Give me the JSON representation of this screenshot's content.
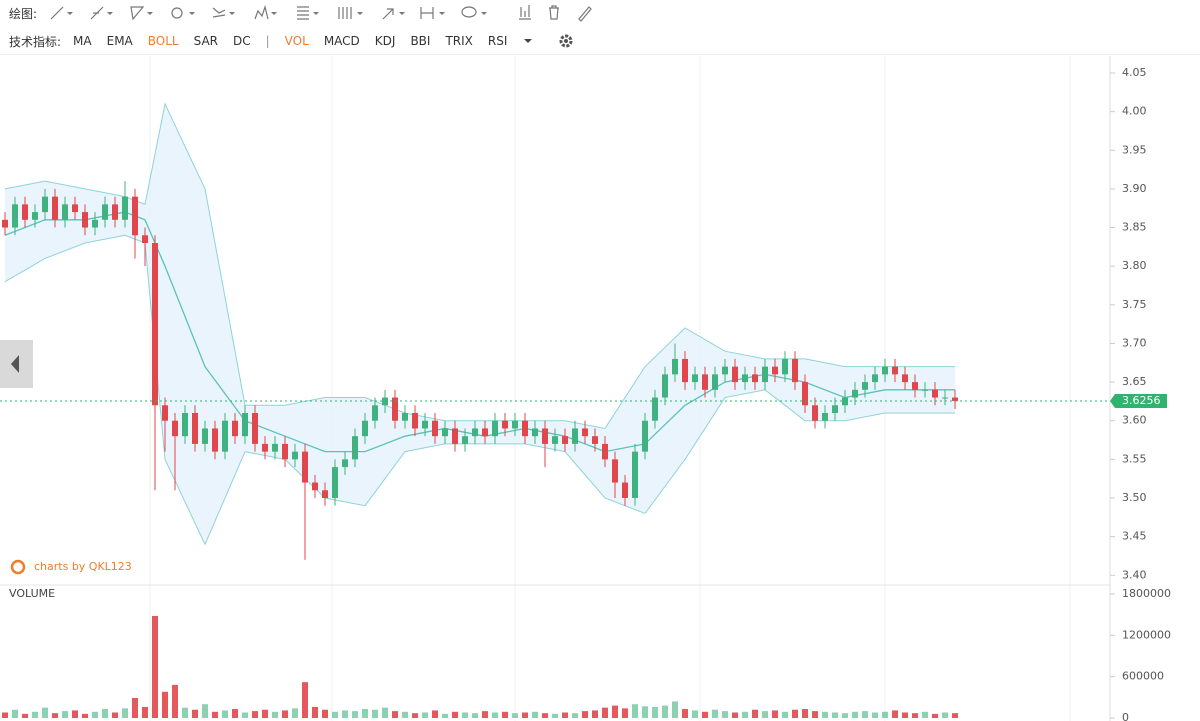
{
  "toolbar": {
    "draw_label": "绘图:",
    "indicator_label": "技术指标:",
    "indicators": [
      "MA",
      "EMA",
      "BOLL",
      "SAR",
      "DC"
    ],
    "separator": "|",
    "sub_indicators": [
      "VOL",
      "MACD",
      "KDJ",
      "BBI",
      "TRIX",
      "RSI"
    ],
    "active_indicator": 2,
    "active_sub_indicator": 0,
    "active_color": "#f07c2e"
  },
  "watermark": "charts by QKL123",
  "chart_data": [
    {
      "type": "candlestick",
      "up_color": "#3fb27f",
      "down_color": "#e0474c",
      "ylim": [
        3.39,
        4.072
      ],
      "yticks": [
        {
          "value": 3.4,
          "label": "3.40"
        },
        3.45,
        {
          "value": 3.5,
          "label": "3.50"
        },
        3.55,
        {
          "value": 3.6,
          "label": "3.60"
        },
        3.65,
        {
          "value": 3.7,
          "label": "3.70"
        },
        3.75,
        {
          "value": 3.8,
          "label": "3.80"
        },
        3.85,
        {
          "value": 3.9,
          "label": "3.90"
        },
        3.95,
        {
          "value": 4.0,
          "label": "4.00"
        },
        4.05
      ],
      "open": [
        3.86,
        3.85,
        3.88,
        3.86,
        3.87,
        3.89,
        3.86,
        3.88,
        3.87,
        3.85,
        3.86,
        3.88,
        3.86,
        3.89,
        3.84,
        3.83,
        3.62,
        3.6,
        3.58,
        3.61,
        3.57,
        3.59,
        3.56,
        3.6,
        3.58,
        3.61,
        3.57,
        3.56,
        3.57,
        3.55,
        3.56,
        3.52,
        3.51,
        3.5,
        3.54,
        3.55,
        3.58,
        3.6,
        3.62,
        3.63,
        3.6,
        3.61,
        3.59,
        3.6,
        3.58,
        3.59,
        3.57,
        3.58,
        3.59,
        3.58,
        3.6,
        3.59,
        3.6,
        3.58,
        3.59,
        3.57,
        3.58,
        3.57,
        3.59,
        3.58,
        3.57,
        3.55,
        3.52,
        3.5,
        3.56,
        3.6,
        3.63,
        3.66,
        3.68,
        3.65,
        3.66,
        3.64,
        3.66,
        3.67,
        3.65,
        3.66,
        3.65,
        3.67,
        3.66,
        3.68,
        3.65,
        3.62,
        3.6,
        3.61,
        3.62,
        3.63,
        3.64,
        3.65,
        3.66,
        3.67,
        3.66,
        3.65,
        3.64,
        3.64,
        3.63,
        3.63
      ],
      "high": [
        3.87,
        3.89,
        3.89,
        3.88,
        3.9,
        3.9,
        3.89,
        3.89,
        3.88,
        3.87,
        3.89,
        3.89,
        3.91,
        3.9,
        3.85,
        3.84,
        3.63,
        3.61,
        3.62,
        3.62,
        3.6,
        3.6,
        3.61,
        3.61,
        3.62,
        3.62,
        3.58,
        3.58,
        3.58,
        3.57,
        3.57,
        3.53,
        3.52,
        3.55,
        3.56,
        3.59,
        3.61,
        3.63,
        3.64,
        3.64,
        3.62,
        3.62,
        3.61,
        3.61,
        3.6,
        3.6,
        3.59,
        3.6,
        3.6,
        3.61,
        3.61,
        3.61,
        3.61,
        3.6,
        3.6,
        3.59,
        3.59,
        3.6,
        3.6,
        3.59,
        3.58,
        3.56,
        3.53,
        3.57,
        3.61,
        3.64,
        3.67,
        3.7,
        3.69,
        3.67,
        3.67,
        3.67,
        3.68,
        3.68,
        3.67,
        3.67,
        3.68,
        3.68,
        3.69,
        3.69,
        3.66,
        3.63,
        3.62,
        3.63,
        3.64,
        3.65,
        3.66,
        3.67,
        3.68,
        3.68,
        3.67,
        3.66,
        3.65,
        3.65,
        3.64,
        3.64
      ],
      "low": [
        3.84,
        3.84,
        3.85,
        3.85,
        3.86,
        3.85,
        3.85,
        3.86,
        3.84,
        3.84,
        3.85,
        3.85,
        3.85,
        3.81,
        3.8,
        3.51,
        3.56,
        3.51,
        3.57,
        3.56,
        3.56,
        3.55,
        3.55,
        3.57,
        3.57,
        3.56,
        3.55,
        3.55,
        3.54,
        3.54,
        3.42,
        3.5,
        3.49,
        3.49,
        3.53,
        3.54,
        3.57,
        3.59,
        3.61,
        3.59,
        3.59,
        3.58,
        3.58,
        3.57,
        3.57,
        3.56,
        3.56,
        3.57,
        3.57,
        3.57,
        3.58,
        3.58,
        3.57,
        3.57,
        3.54,
        3.56,
        3.56,
        3.56,
        3.57,
        3.56,
        3.54,
        3.5,
        3.49,
        3.49,
        3.55,
        3.59,
        3.62,
        3.65,
        3.64,
        3.64,
        3.63,
        3.63,
        3.65,
        3.64,
        3.64,
        3.64,
        3.64,
        3.65,
        3.65,
        3.64,
        3.61,
        3.59,
        3.59,
        3.6,
        3.61,
        3.62,
        3.63,
        3.64,
        3.65,
        3.65,
        3.64,
        3.63,
        3.63,
        3.62,
        3.62,
        3.615
      ],
      "close": [
        3.85,
        3.88,
        3.86,
        3.87,
        3.89,
        3.86,
        3.88,
        3.87,
        3.85,
        3.86,
        3.88,
        3.86,
        3.89,
        3.84,
        3.83,
        3.62,
        3.6,
        3.58,
        3.61,
        3.57,
        3.59,
        3.56,
        3.6,
        3.58,
        3.61,
        3.57,
        3.56,
        3.57,
        3.55,
        3.56,
        3.52,
        3.51,
        3.5,
        3.54,
        3.55,
        3.58,
        3.6,
        3.62,
        3.63,
        3.6,
        3.61,
        3.59,
        3.6,
        3.58,
        3.59,
        3.57,
        3.58,
        3.59,
        3.58,
        3.6,
        3.59,
        3.6,
        3.58,
        3.59,
        3.57,
        3.58,
        3.57,
        3.59,
        3.58,
        3.57,
        3.55,
        3.52,
        3.5,
        3.56,
        3.6,
        3.63,
        3.66,
        3.68,
        3.65,
        3.66,
        3.64,
        3.66,
        3.67,
        3.65,
        3.66,
        3.65,
        3.67,
        3.66,
        3.68,
        3.65,
        3.62,
        3.6,
        3.61,
        3.62,
        3.63,
        3.64,
        3.65,
        3.66,
        3.67,
        3.66,
        3.65,
        3.64,
        3.64,
        3.63,
        3.63,
        3.6256
      ],
      "last_price": 3.6256,
      "last_price_color": "#2fb36e",
      "bands": {
        "line_color": "#8fd3d8",
        "mid_color": "#5cc2b8",
        "fill_color": "#e3f1fb",
        "x": [
          0,
          4,
          8,
          12,
          14,
          16,
          20,
          24,
          28,
          32,
          36,
          40,
          44,
          48,
          52,
          56,
          60,
          64,
          68,
          72,
          76,
          80,
          84,
          88,
          92,
          95
        ],
        "upper": [
          3.9,
          3.91,
          3.9,
          3.89,
          3.88,
          4.01,
          3.9,
          3.62,
          3.62,
          3.63,
          3.63,
          3.61,
          3.6,
          3.6,
          3.6,
          3.6,
          3.59,
          3.67,
          3.72,
          3.69,
          3.68,
          3.68,
          3.67,
          3.67,
          3.67,
          3.67
        ],
        "middle": [
          3.84,
          3.86,
          3.86,
          3.87,
          3.86,
          3.8,
          3.67,
          3.6,
          3.58,
          3.56,
          3.56,
          3.58,
          3.59,
          3.58,
          3.59,
          3.58,
          3.56,
          3.57,
          3.62,
          3.65,
          3.66,
          3.65,
          3.63,
          3.64,
          3.64,
          3.64
        ],
        "lower": [
          3.78,
          3.81,
          3.83,
          3.84,
          3.83,
          3.55,
          3.44,
          3.56,
          3.55,
          3.5,
          3.49,
          3.56,
          3.57,
          3.57,
          3.57,
          3.56,
          3.5,
          3.48,
          3.55,
          3.63,
          3.64,
          3.6,
          3.6,
          3.61,
          3.61,
          3.61
        ]
      }
    },
    {
      "type": "bar",
      "title": "VOLUME",
      "ylim": [
        0,
        1900000
      ],
      "yticks": [
        0,
        600000,
        1200000,
        1800000
      ],
      "values": [
        80000,
        120000,
        60000,
        90000,
        150000,
        70000,
        100000,
        110000,
        60000,
        90000,
        130000,
        80000,
        140000,
        290000,
        160000,
        1480000,
        380000,
        480000,
        150000,
        120000,
        200000,
        90000,
        110000,
        130000,
        80000,
        100000,
        120000,
        90000,
        110000,
        140000,
        520000,
        160000,
        120000,
        90000,
        110000,
        100000,
        130000,
        120000,
        150000,
        100000,
        90000,
        70000,
        80000,
        110000,
        60000,
        90000,
        80000,
        70000,
        100000,
        80000,
        90000,
        70000,
        80000,
        90000,
        70000,
        60000,
        80000,
        70000,
        100000,
        110000,
        150000,
        180000,
        140000,
        200000,
        170000,
        160000,
        180000,
        240000,
        130000,
        110000,
        90000,
        120000,
        100000,
        80000,
        90000,
        120000,
        100000,
        110000,
        90000,
        120000,
        130000,
        100000,
        90000,
        80000,
        70000,
        90000,
        100000,
        80000,
        90000,
        110000,
        80000,
        70000,
        90000,
        60000,
        80000,
        70000
      ]
    }
  ]
}
